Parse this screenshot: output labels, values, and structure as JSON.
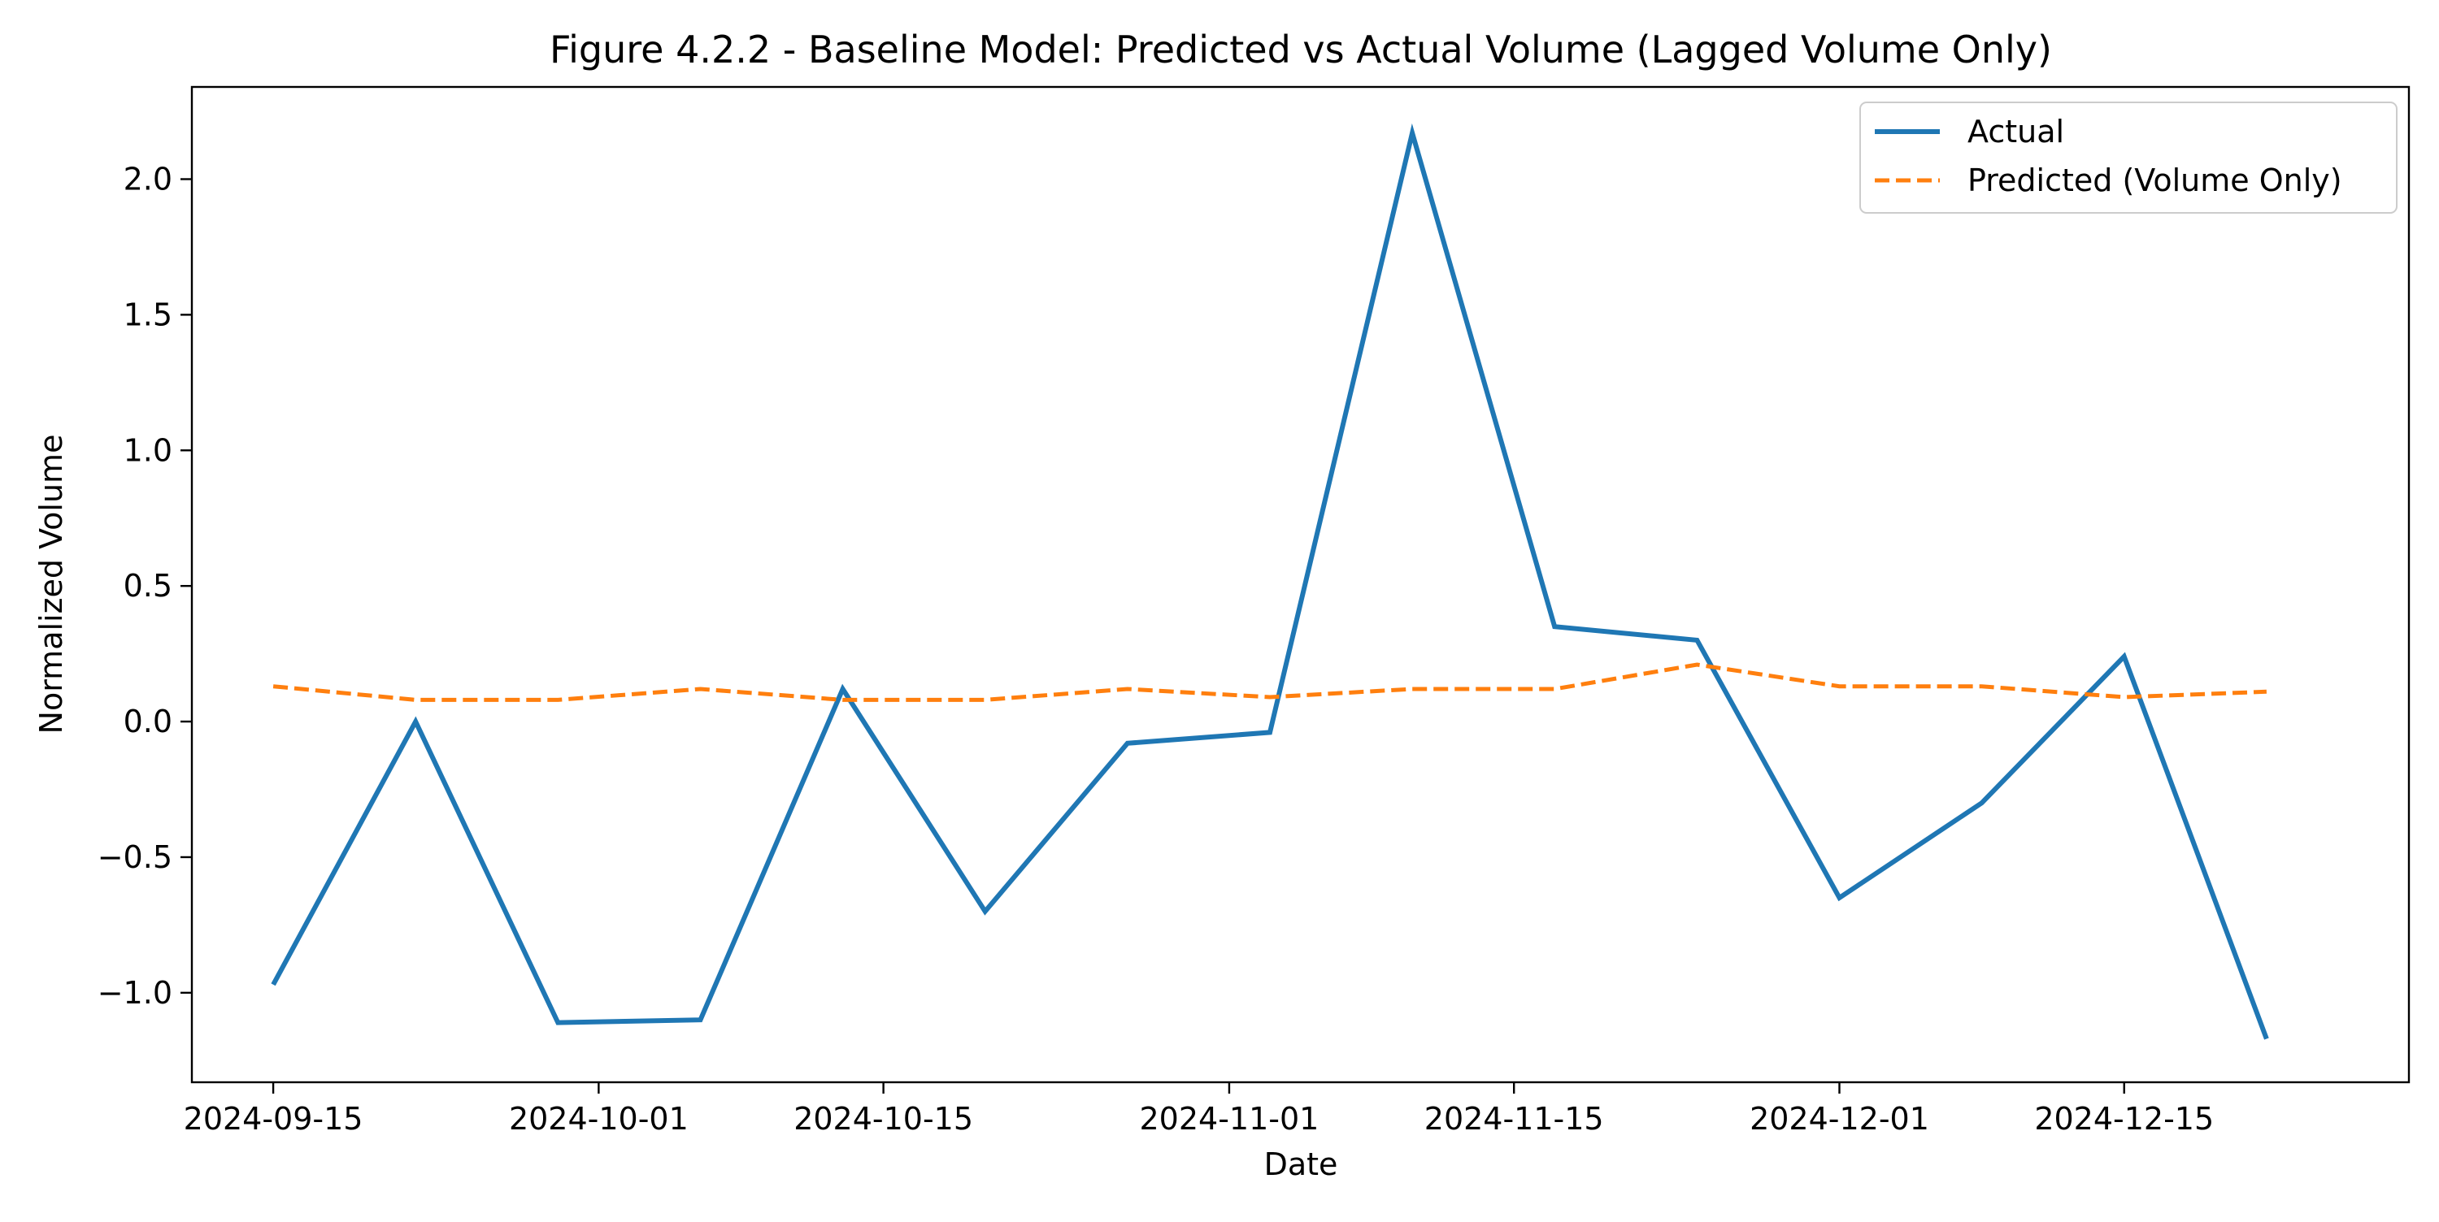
{
  "chart_data": {
    "type": "line",
    "title": "Figure 4.2.2 - Baseline Model: Predicted vs Actual Volume (Lagged Volume Only)",
    "xlabel": "Date",
    "ylabel": "Normalized Volume",
    "x_axis_kind": "date",
    "xlim": [
      "2024-09-11",
      "2024-12-29"
    ],
    "ylim": [
      -1.33,
      2.34
    ],
    "x_ticks": [
      "2024-09-15",
      "2024-10-01",
      "2024-10-15",
      "2024-11-01",
      "2024-11-15",
      "2024-12-01",
      "2024-12-15"
    ],
    "x_tick_labels": [
      "2024-09-15",
      "2024-10-01",
      "2024-10-15",
      "2024-11-01",
      "2024-11-15",
      "2024-12-01",
      "2024-12-15"
    ],
    "y_ticks": [
      -1.0,
      -0.5,
      0.0,
      0.5,
      1.0,
      1.5,
      2.0
    ],
    "y_tick_labels": [
      "−1.0",
      "−0.5",
      "0.0",
      "0.5",
      "1.0",
      "1.5",
      "2.0"
    ],
    "grid": false,
    "legend_position": "top-right",
    "x": [
      "2024-09-15",
      "2024-09-22",
      "2024-09-29",
      "2024-10-06",
      "2024-10-13",
      "2024-10-20",
      "2024-10-27",
      "2024-11-03",
      "2024-11-10",
      "2024-11-17",
      "2024-11-24",
      "2024-12-01",
      "2024-12-08",
      "2024-12-15",
      "2024-12-22"
    ],
    "series": [
      {
        "name": "Actual",
        "color": "#1f77b4",
        "style": "solid",
        "values": [
          -0.97,
          0.0,
          -1.11,
          -1.1,
          0.12,
          -0.7,
          -0.08,
          -0.04,
          2.17,
          0.35,
          0.3,
          -0.65,
          -0.3,
          0.24,
          -1.17
        ]
      },
      {
        "name": "Predicted (Volume Only)",
        "color": "#ff7f0e",
        "style": "dashed",
        "values": [
          0.13,
          0.08,
          0.08,
          0.12,
          0.08,
          0.08,
          0.12,
          0.09,
          0.12,
          0.12,
          0.21,
          0.13,
          0.13,
          0.09,
          0.11
        ]
      }
    ]
  }
}
